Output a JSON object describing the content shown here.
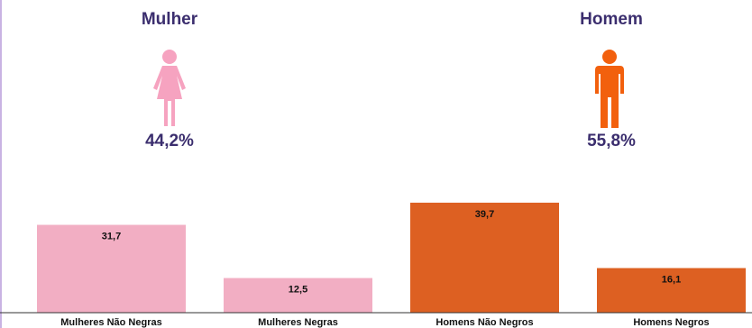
{
  "genders": {
    "female": {
      "title": "Mulher",
      "percent": "44,2%",
      "color": "#f6a3c0",
      "icon": "woman-icon"
    },
    "male": {
      "title": "Homem",
      "percent": "55,8%",
      "color": "#f2600d",
      "icon": "man-icon"
    }
  },
  "chart_data": {
    "type": "bar",
    "categories": [
      "Mulheres Não Negras",
      "Mulheres Negras",
      "Homens Não Negros",
      "Homens Negros"
    ],
    "values": [
      31.7,
      12.5,
      39.7,
      16.1
    ],
    "value_labels": [
      "31,7",
      "12,5",
      "39,7",
      "16,1"
    ],
    "colors": [
      "#f2aec3",
      "#f2aec3",
      "#dd6022",
      "#dd6022"
    ],
    "ylim": [
      0,
      40
    ],
    "grid": false,
    "legend": "none"
  }
}
